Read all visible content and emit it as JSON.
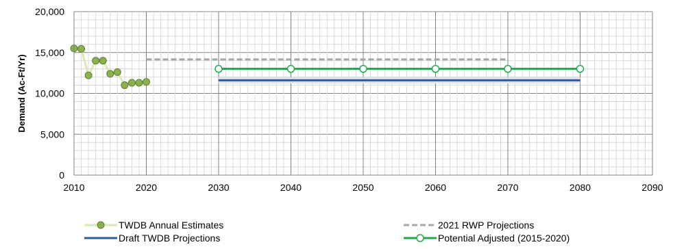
{
  "chart_data": {
    "type": "line",
    "title": "",
    "xlabel": "",
    "ylabel": "Demand (Ac-Ft/Yr)",
    "xlim": [
      2010,
      2090
    ],
    "ylim": [
      0,
      20000
    ],
    "x_ticks": [
      "2010",
      "2020",
      "2030",
      "2040",
      "2050",
      "2060",
      "2070",
      "2080",
      "2090"
    ],
    "y_ticks": [
      "0",
      "5,000",
      "10,000",
      "15,000",
      "20,000"
    ],
    "grid": "on (major and minor)",
    "legend_position": "bottom",
    "series": [
      {
        "name": "TWDB Annual Estimates",
        "style": "line with filled circle markers",
        "color": "#77a33c",
        "line_color": "#d8e8b8",
        "points": [
          {
            "x": 2010,
            "y": 15500
          },
          {
            "x": 2011,
            "y": 15450
          },
          {
            "x": 2012,
            "y": 12200
          },
          {
            "x": 2013,
            "y": 14000
          },
          {
            "x": 2014,
            "y": 14000
          },
          {
            "x": 2015,
            "y": 12400
          },
          {
            "x": 2016,
            "y": 12600
          },
          {
            "x": 2017,
            "y": 11000
          },
          {
            "x": 2018,
            "y": 11300
          },
          {
            "x": 2019,
            "y": 11300
          },
          {
            "x": 2020,
            "y": 11400
          }
        ]
      },
      {
        "name": "2021 RWP Projections",
        "style": "dashed line",
        "color": "#a6a6a6",
        "points": [
          {
            "x": 2020,
            "y": 14150
          },
          {
            "x": 2030,
            "y": 14150
          },
          {
            "x": 2040,
            "y": 14150
          },
          {
            "x": 2050,
            "y": 14150
          },
          {
            "x": 2060,
            "y": 14150
          },
          {
            "x": 2070,
            "y": 14150
          }
        ]
      },
      {
        "name": "Draft TWDB Projections",
        "style": "solid line",
        "color": "#2e5b9a",
        "points": [
          {
            "x": 2030,
            "y": 11600
          },
          {
            "x": 2040,
            "y": 11600
          },
          {
            "x": 2050,
            "y": 11600
          },
          {
            "x": 2060,
            "y": 11600
          },
          {
            "x": 2070,
            "y": 11600
          },
          {
            "x": 2080,
            "y": 11600
          }
        ]
      },
      {
        "name": "Potential Adjusted (2015-2020)",
        "style": "solid line with open circle markers",
        "color": "#1fa84f",
        "points": [
          {
            "x": 2030,
            "y": 13000
          },
          {
            "x": 2040,
            "y": 13000
          },
          {
            "x": 2050,
            "y": 13000
          },
          {
            "x": 2060,
            "y": 13000
          },
          {
            "x": 2070,
            "y": 13000
          },
          {
            "x": 2080,
            "y": 13000
          }
        ]
      }
    ]
  }
}
